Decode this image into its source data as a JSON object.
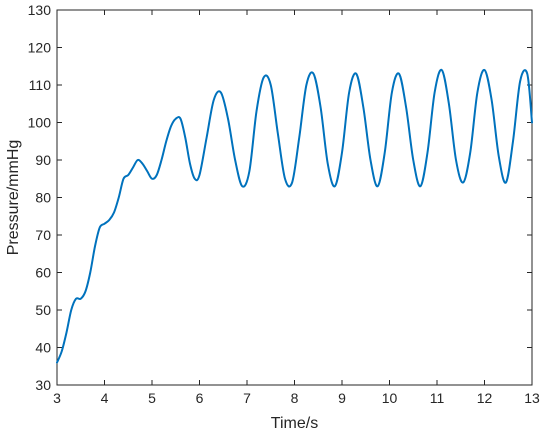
{
  "chart_data": {
    "type": "line",
    "title": "",
    "xlabel": "Time/s",
    "ylabel": "Pressure/mmHg",
    "xlim": [
      3,
      13
    ],
    "ylim": [
      30,
      130
    ],
    "xticks": [
      "3",
      "4",
      "5",
      "6",
      "7",
      "8",
      "9",
      "10",
      "11",
      "12",
      "13"
    ],
    "yticks": [
      "30",
      "40",
      "50",
      "60",
      "70",
      "80",
      "90",
      "100",
      "110",
      "120",
      "130"
    ],
    "grid": false,
    "legend": "none",
    "series": [
      {
        "color": "#0072BD",
        "x": [
          3.0,
          3.1,
          3.2,
          3.3,
          3.4,
          3.5,
          3.6,
          3.7,
          3.8,
          3.9,
          4.0,
          4.1,
          4.2,
          4.3,
          4.4,
          4.5,
          4.6,
          4.7,
          4.8,
          4.9,
          5.0,
          5.1,
          5.2,
          5.3,
          5.4,
          5.5,
          5.6,
          5.7,
          5.8,
          5.9,
          6.0,
          6.15,
          6.3,
          6.45,
          6.6,
          6.75,
          6.9,
          7.05,
          7.2,
          7.35,
          7.5,
          7.65,
          7.8,
          7.95,
          8.1,
          8.25,
          8.4,
          8.55,
          8.7,
          8.85,
          9.0,
          9.15,
          9.3,
          9.45,
          9.6,
          9.75,
          9.9,
          10.05,
          10.2,
          10.35,
          10.5,
          10.65,
          10.8,
          10.95,
          11.1,
          11.25,
          11.4,
          11.55,
          11.7,
          11.85,
          12.0,
          12.15,
          12.3,
          12.45,
          12.6,
          12.75,
          12.9,
          13.0
        ],
        "y": [
          36,
          39,
          44,
          50,
          53,
          53,
          55,
          60,
          67,
          72,
          73,
          74,
          76,
          80,
          85,
          86,
          88,
          90,
          89,
          87,
          85,
          86,
          90,
          95,
          99,
          101,
          101,
          96,
          89,
          85,
          86,
          96,
          106,
          108,
          101,
          90,
          83,
          87,
          103,
          112,
          110,
          97,
          85,
          84,
          96,
          110,
          113,
          104,
          89,
          83,
          92,
          108,
          113,
          104,
          90,
          83,
          92,
          108,
          113,
          104,
          90,
          83,
          92,
          108,
          114,
          105,
          90,
          84,
          92,
          108,
          114,
          106,
          91,
          84,
          95,
          111,
          113,
          100
        ]
      }
    ]
  }
}
